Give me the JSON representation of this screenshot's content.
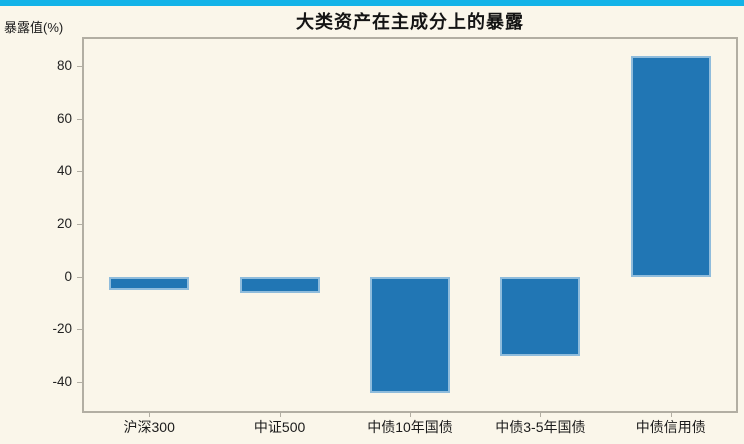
{
  "page": {
    "background_color": "#faf6ea",
    "accent_strip_color": "#13b3e8"
  },
  "chart_data": {
    "type": "bar",
    "title": "大类资产在主成分上的暴露",
    "ylabel": "暴露值(%)",
    "xlabel": "",
    "categories": [
      "沪深300",
      "中证500",
      "中债10年国债",
      "中债3-5年国债",
      "中债信用债"
    ],
    "values": [
      -5,
      -6,
      -44,
      -30,
      84
    ],
    "yticks": [
      80,
      60,
      40,
      20,
      0,
      -20,
      -40
    ],
    "ylim": [
      -51,
      90.3
    ],
    "grid": false,
    "legend_position": "none",
    "bar_color": "#2176b4",
    "bar_edge_color": "#8fbcdc",
    "axis_color": "#b2aea3",
    "tick_label_color": "#222222",
    "plot_background": "#faf6ea"
  }
}
